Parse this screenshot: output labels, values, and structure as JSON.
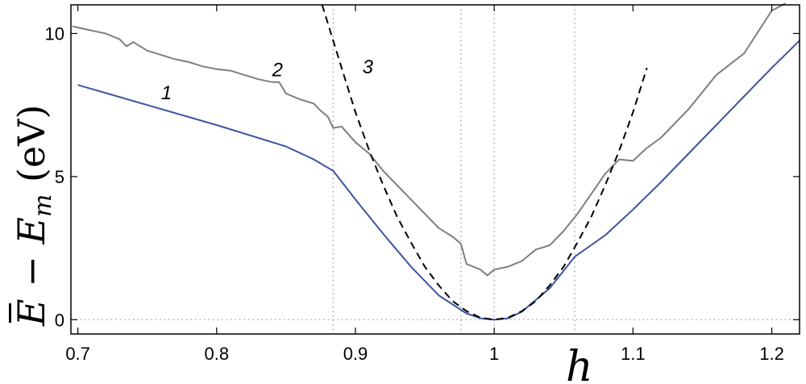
{
  "chart_data": {
    "type": "line",
    "title": "",
    "xlabel": "h",
    "ylabel_parts": [
      "E",
      " − ",
      "E",
      "m",
      "  (eV)"
    ],
    "xlim": [
      0.695,
      1.22
    ],
    "ylim": [
      -0.5,
      11
    ],
    "xticks": [
      0.7,
      0.8,
      0.9,
      1.0,
      1.1,
      1.2
    ],
    "xtick_labels": [
      "0.7",
      "0.8",
      "0.9",
      "1",
      "1.1",
      "1.2"
    ],
    "yticks": [
      0,
      5,
      10
    ],
    "ytick_labels": [
      "0",
      "5",
      "10"
    ],
    "vertical_dotted_lines": [
      0.884,
      0.976,
      1.0,
      1.058
    ],
    "horizontal_dotted_lines": [
      0
    ],
    "colors": {
      "series1": "#3a55a0",
      "series2": "#7f7f7f",
      "series3": "#000000",
      "dotted": "#9a9a9a"
    },
    "series": [
      {
        "name": "1",
        "label": "1",
        "label_pos": {
          "x": 0.76,
          "y": 7.7
        },
        "x": [
          0.7,
          0.75,
          0.8,
          0.85,
          0.87,
          0.884,
          0.9,
          0.92,
          0.94,
          0.96,
          0.98,
          0.99,
          1.0,
          1.01,
          1.02,
          1.04,
          1.058,
          1.08,
          1.1,
          1.12,
          1.14,
          1.16,
          1.18,
          1.2,
          1.22
        ],
        "y": [
          8.2,
          7.5,
          6.8,
          6.05,
          5.6,
          5.2,
          4.2,
          3.0,
          1.85,
          0.85,
          0.22,
          0.05,
          0.0,
          0.05,
          0.28,
          1.1,
          2.2,
          2.95,
          3.85,
          4.8,
          5.8,
          6.8,
          7.8,
          8.8,
          9.75
        ]
      },
      {
        "name": "2",
        "label": "2",
        "label_pos": {
          "x": 0.84,
          "y": 8.5
        },
        "x": [
          0.696,
          0.71,
          0.72,
          0.73,
          0.735,
          0.74,
          0.75,
          0.76,
          0.77,
          0.78,
          0.79,
          0.8,
          0.81,
          0.82,
          0.83,
          0.84,
          0.845,
          0.85,
          0.86,
          0.87,
          0.875,
          0.88,
          0.884,
          0.89,
          0.9,
          0.91,
          0.92,
          0.93,
          0.94,
          0.95,
          0.96,
          0.97,
          0.976,
          0.98,
          0.99,
          0.995,
          1.0,
          1.01,
          1.02,
          1.03,
          1.04,
          1.05,
          1.06,
          1.07,
          1.08,
          1.09,
          1.1,
          1.11,
          1.12,
          1.14,
          1.16,
          1.18,
          1.2,
          1.21
        ],
        "y": [
          10.25,
          10.1,
          10.0,
          9.8,
          9.55,
          9.7,
          9.4,
          9.25,
          9.1,
          9.0,
          8.85,
          8.75,
          8.7,
          8.55,
          8.4,
          8.3,
          8.3,
          7.9,
          7.7,
          7.55,
          7.3,
          7.1,
          6.7,
          6.75,
          6.2,
          5.8,
          5.2,
          4.7,
          4.2,
          3.7,
          3.2,
          2.9,
          2.65,
          1.95,
          1.75,
          1.55,
          1.75,
          1.85,
          2.05,
          2.45,
          2.6,
          3.1,
          3.7,
          4.4,
          5.1,
          5.6,
          5.55,
          6.0,
          6.35,
          7.35,
          8.55,
          9.3,
          10.8,
          11.05
        ]
      },
      {
        "name": "3",
        "label": "3",
        "label_pos": {
          "x": 0.905,
          "y": 8.6
        },
        "style": "dashed",
        "x": [
          0.876,
          0.89,
          0.9,
          0.91,
          0.92,
          0.93,
          0.94,
          0.95,
          0.96,
          0.97,
          0.98,
          0.99,
          1.0,
          1.01,
          1.02,
          1.03,
          1.04,
          1.05,
          1.06,
          1.07,
          1.08,
          1.09,
          1.1,
          1.11
        ],
        "y": [
          11.0,
          8.8,
          7.25,
          5.9,
          4.7,
          3.6,
          2.7,
          1.85,
          1.2,
          0.65,
          0.3,
          0.07,
          0.0,
          0.07,
          0.3,
          0.65,
          1.2,
          1.85,
          2.7,
          3.6,
          4.7,
          5.9,
          7.25,
          8.8
        ]
      }
    ]
  }
}
